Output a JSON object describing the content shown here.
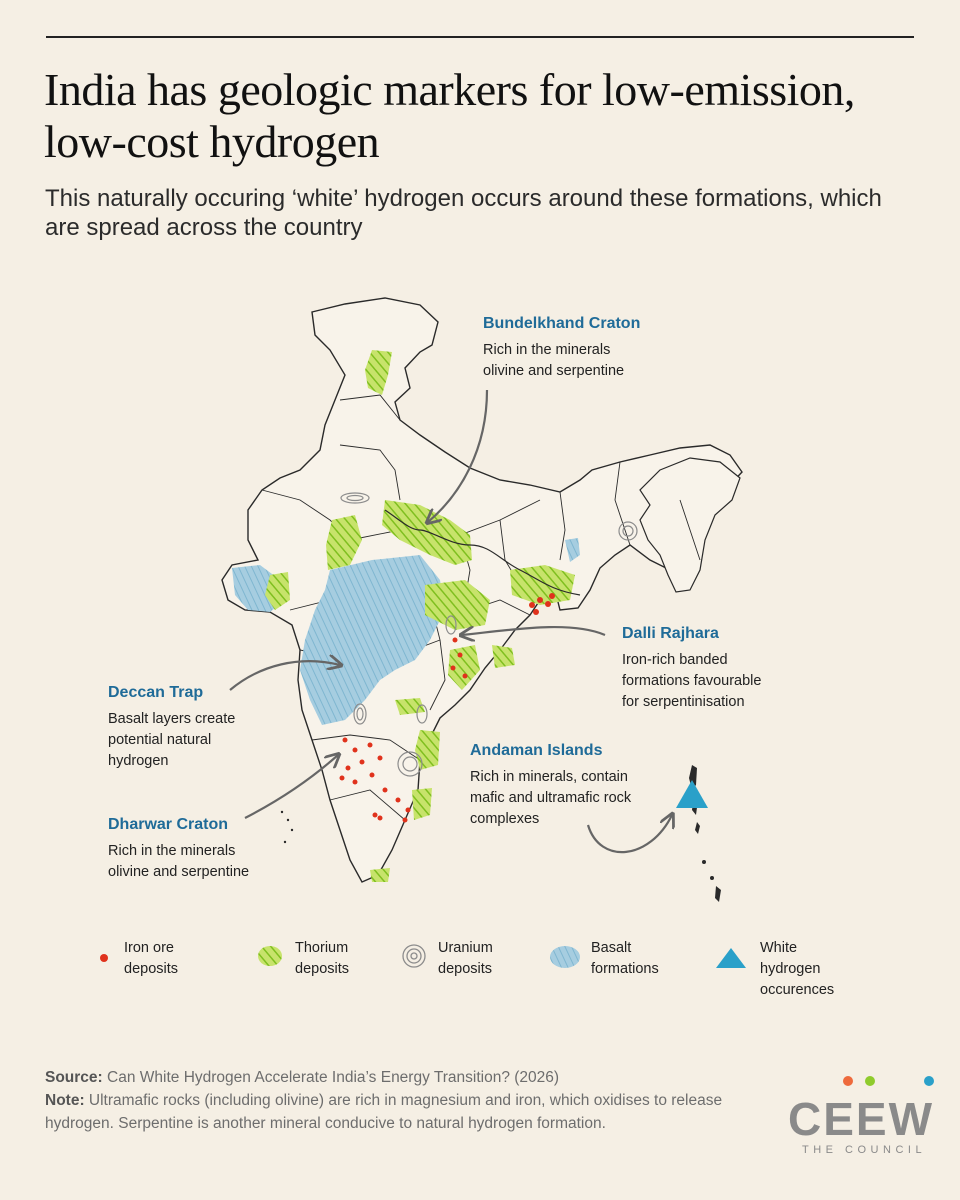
{
  "title": "India has geologic markers for low-emission, low-cost hydrogen",
  "subtitle": "This naturally occuring ‘white’ hydrogen occurs around these formations, which are spread across the country",
  "callouts": {
    "bundelkhand": {
      "name": "Bundelkhand Craton",
      "desc": "Rich in the minerals\nolivine and serpentine"
    },
    "dalli": {
      "name": "Dalli Rajhara",
      "desc": "Iron-rich banded\nformations favourable\nfor serpentinisation"
    },
    "deccan": {
      "name": "Deccan Trap",
      "desc": "Basalt layers create\npotential natural\nhydrogen"
    },
    "andaman": {
      "name": "Andaman Islands",
      "desc": "Rich in minerals, contain\nmafic and ultramafic rock\ncomplexes"
    },
    "dharwar": {
      "name": "Dharwar Craton",
      "desc": "Rich in the minerals\nolivine and serpentine"
    }
  },
  "legend": [
    {
      "icon": "iron-ore-dot",
      "label": "Iron ore\ndeposits",
      "color": "#e0321c"
    },
    {
      "icon": "thorium-hatch",
      "label": "Thorium\ndeposits",
      "color": "#8fcb2c"
    },
    {
      "icon": "uranium-swirl",
      "label": "Uranium\ndeposits",
      "color": "#8c8c8c"
    },
    {
      "icon": "basalt-blob",
      "label": "Basalt\nformations",
      "color": "#8fc0d8"
    },
    {
      "icon": "white-hydrogen-triangle",
      "label": "White\nhydrogen\noccurences",
      "color": "#2aa0c9"
    }
  ],
  "footer": {
    "source_label": "Source:",
    "source_text": "Can White Hydrogen Accelerate India’s Energy Transition? (2026)",
    "note_label": "Note:",
    "note_text": "Ultramafic rocks (including olivine) are rich in magnesium and iron, which oxidises to release hydrogen. Serpentine is another mineral conducive to natural hydrogen formation."
  },
  "logo": {
    "word": "CEEW",
    "tagline": "THE COUNCIL",
    "dot_colors": [
      "#ee6a3c",
      "#8fcb2c",
      "#2aa0c9"
    ]
  }
}
